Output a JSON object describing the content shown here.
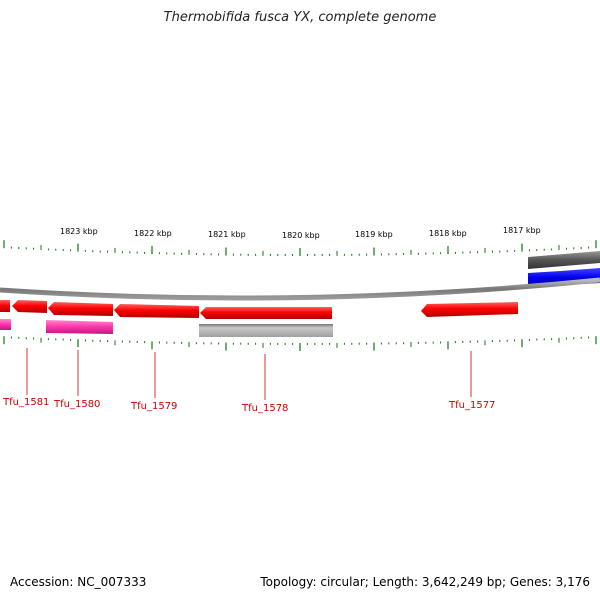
{
  "title": "Thermobifida fusca YX, complete genome",
  "footer": {
    "accession": "Accession: NC_007333",
    "summary": "Topology: circular; Length: 3,642,249 bp; Genes: 3,176"
  },
  "scale_labels": [
    "1823 kbp",
    "1822 kbp",
    "1821 kbp",
    "1820 kbp",
    "1819 kbp",
    "1818 kbp",
    "1817 kbp"
  ],
  "genes": [
    {
      "label": "Tfu_1581"
    },
    {
      "label": "Tfu_1580"
    },
    {
      "label": "Tfu_1579"
    },
    {
      "label": "Tfu_1578"
    },
    {
      "label": "Tfu_1577"
    }
  ],
  "colors": {
    "cds": "#ff0000",
    "label": "#cc0000",
    "backbone": "#888888",
    "tick": "#117711",
    "feature_pink": "#ff33aa",
    "feature_grey": "#b0b0b0",
    "feature_dark": "#555555",
    "feature_blue": "#0000ee"
  }
}
